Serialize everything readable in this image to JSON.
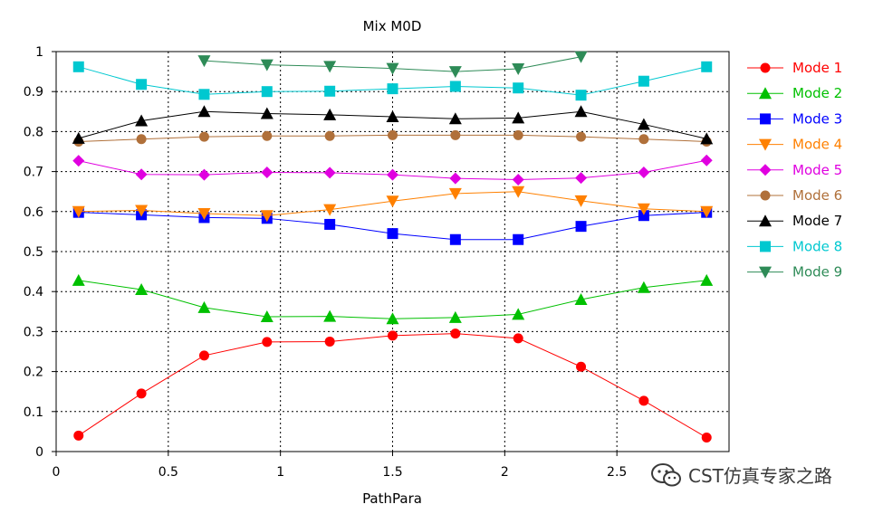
{
  "chart_data": {
    "type": "line",
    "title": "Mix M0D",
    "xlabel": "PathPara",
    "ylabel": "",
    "xlim": [
      0,
      3.0
    ],
    "ylim": [
      0,
      1
    ],
    "xticks": [
      "0",
      "0.5",
      "1",
      "1.5",
      "2",
      "2.5"
    ],
    "yticks": [
      "0",
      "0.1",
      "0.2",
      "0.3",
      "0.4",
      "0.5",
      "0.6",
      "0.7",
      "0.8",
      "0.9",
      "1"
    ],
    "grid": true,
    "legend_position": "right",
    "series": [
      {
        "name": "Mode 1",
        "color": "#ff0000",
        "marker": "circle",
        "x": [
          0.1,
          0.38,
          0.66,
          0.94,
          1.22,
          1.5,
          1.78,
          2.06,
          2.34,
          2.62,
          2.9
        ],
        "y": [
          0.04,
          0.145,
          0.24,
          0.274,
          0.275,
          0.29,
          0.295,
          0.283,
          0.212,
          0.127,
          0.035
        ]
      },
      {
        "name": "Mode 2",
        "color": "#00c000",
        "marker": "triangle-up",
        "x": [
          0.1,
          0.38,
          0.66,
          0.94,
          1.22,
          1.5,
          1.78,
          2.06,
          2.34,
          2.62,
          2.9
        ],
        "y": [
          0.428,
          0.405,
          0.36,
          0.337,
          0.338,
          0.332,
          0.335,
          0.343,
          0.38,
          0.41,
          0.428
        ]
      },
      {
        "name": "Mode 3",
        "color": "#0000ff",
        "marker": "square",
        "x": [
          0.1,
          0.38,
          0.66,
          0.94,
          1.22,
          1.5,
          1.78,
          2.06,
          2.34,
          2.62,
          2.9
        ],
        "y": [
          0.598,
          0.592,
          0.585,
          0.583,
          0.568,
          0.545,
          0.53,
          0.53,
          0.563,
          0.59,
          0.598
        ]
      },
      {
        "name": "Mode 4",
        "color": "#ff8000",
        "marker": "triangle-down",
        "x": [
          0.1,
          0.38,
          0.66,
          0.94,
          1.22,
          1.5,
          1.78,
          2.06,
          2.34,
          2.62,
          2.9
        ],
        "y": [
          0.6,
          0.603,
          0.595,
          0.59,
          0.605,
          0.626,
          0.645,
          0.65,
          0.627,
          0.607,
          0.6
        ]
      },
      {
        "name": "Mode 5",
        "color": "#e000e0",
        "marker": "diamond",
        "x": [
          0.1,
          0.38,
          0.66,
          0.94,
          1.22,
          1.5,
          1.78,
          2.06,
          2.34,
          2.62,
          2.9
        ],
        "y": [
          0.727,
          0.693,
          0.692,
          0.698,
          0.697,
          0.692,
          0.683,
          0.68,
          0.684,
          0.698,
          0.728
        ]
      },
      {
        "name": "Mode 6",
        "color": "#b0703a",
        "marker": "circle",
        "x": [
          0.1,
          0.38,
          0.66,
          0.94,
          1.22,
          1.5,
          1.78,
          2.06,
          2.34,
          2.62,
          2.9
        ],
        "y": [
          0.775,
          0.781,
          0.787,
          0.789,
          0.789,
          0.791,
          0.791,
          0.791,
          0.787,
          0.781,
          0.775
        ]
      },
      {
        "name": "Mode 7",
        "color": "#000000",
        "marker": "triangle-up",
        "x": [
          0.1,
          0.38,
          0.66,
          0.94,
          1.22,
          1.5,
          1.78,
          2.06,
          2.34,
          2.62,
          2.9
        ],
        "y": [
          0.783,
          0.827,
          0.85,
          0.845,
          0.842,
          0.837,
          0.832,
          0.834,
          0.85,
          0.818,
          0.782
        ]
      },
      {
        "name": "Mode 8",
        "color": "#00c8d0",
        "marker": "square",
        "x": [
          0.1,
          0.38,
          0.66,
          0.94,
          1.22,
          1.5,
          1.78,
          2.06,
          2.34,
          2.62,
          2.9
        ],
        "y": [
          0.962,
          0.918,
          0.893,
          0.9,
          0.901,
          0.907,
          0.913,
          0.909,
          0.891,
          0.926,
          0.962
        ]
      },
      {
        "name": "Mode 9",
        "color": "#2e8b57",
        "marker": "triangle-down",
        "x": [
          0.66,
          0.94,
          1.22,
          1.5,
          1.78,
          2.06,
          2.34
        ],
        "y": [
          0.977,
          0.967,
          0.963,
          0.958,
          0.95,
          0.957,
          0.987
        ]
      }
    ]
  },
  "watermark": {
    "icon": "wechat-icon",
    "text": "CST仿真专家之路"
  }
}
